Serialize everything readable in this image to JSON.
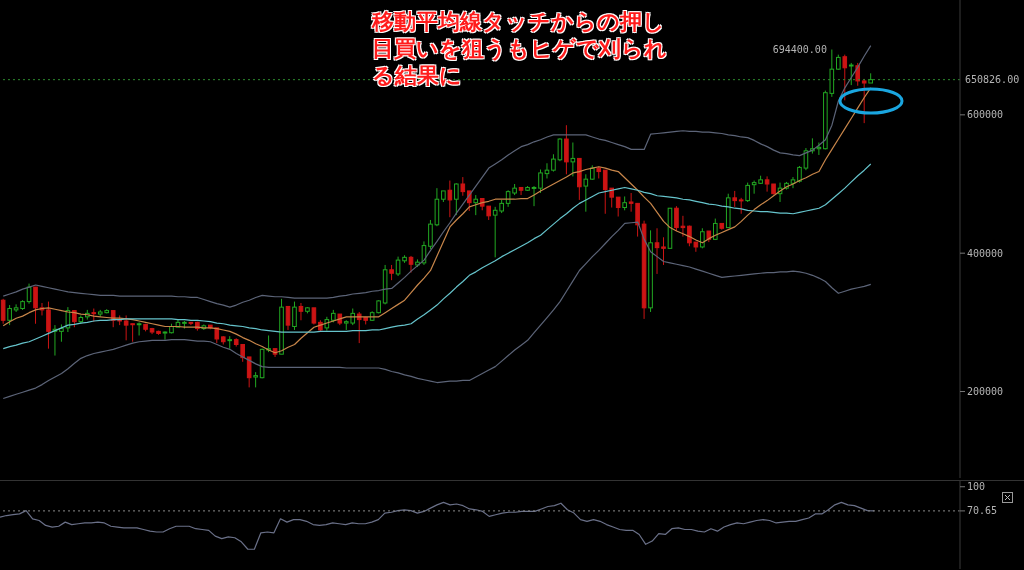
{
  "chart_data": [
    {
      "type": "candlestick",
      "title": "移動平均線タッチからの押し目買いを狙うもヒゲで刈られる結果に",
      "categories": [
        null,
        null,
        null,
        null,
        null,
        null,
        null,
        null,
        null,
        null,
        null,
        null,
        null,
        null,
        null,
        null,
        null,
        null,
        null,
        null,
        null,
        null,
        null,
        null,
        null,
        null,
        null,
        null,
        null,
        null,
        null,
        null,
        null,
        null,
        null,
        null,
        null,
        null,
        null,
        null,
        null,
        null,
        null,
        null,
        null,
        null,
        null,
        null,
        null,
        null,
        null,
        null,
        null,
        null,
        null,
        null,
        null,
        null,
        null,
        null,
        null,
        null,
        null,
        null,
        null,
        null,
        null,
        null,
        null,
        null,
        null,
        null,
        null,
        null,
        null,
        null,
        null,
        null,
        null,
        null,
        null,
        null,
        null,
        null,
        null,
        null,
        null,
        null,
        null,
        null,
        null,
        null,
        null,
        null,
        null,
        null,
        null,
        null,
        null,
        null,
        null,
        null,
        null,
        null,
        null,
        null,
        null,
        null,
        null,
        null,
        null,
        null,
        null,
        null,
        null,
        null,
        null,
        null,
        null,
        null,
        null,
        null,
        null,
        null,
        null,
        null,
        null,
        null,
        null,
        null,
        null,
        null,
        null,
        null,
        null
      ],
      "ohlc": [
        [
          332000,
          334000,
          298000,
          303000
        ],
        [
          303000,
          325000,
          296000,
          320000
        ],
        [
          318000,
          326000,
          315000,
          321000
        ],
        [
          320000,
          332000,
          318000,
          330000
        ],
        [
          330000,
          356000,
          327000,
          351000
        ],
        [
          351000,
          351000,
          298000,
          321000
        ],
        [
          321000,
          328000,
          310000,
          318000
        ],
        [
          318000,
          330000,
          262000,
          287000
        ],
        [
          287000,
          296000,
          252000,
          290000
        ],
        [
          287000,
          297000,
          272000,
          291000
        ],
        [
          292000,
          322000,
          286000,
          317000
        ],
        [
          317000,
          317000,
          293000,
          301000
        ],
        [
          301000,
          310000,
          298000,
          307000
        ],
        [
          308000,
          318000,
          304000,
          313000
        ],
        [
          314000,
          320000,
          301000,
          313000
        ],
        [
          312000,
          318000,
          308000,
          315000
        ],
        [
          314000,
          319000,
          313000,
          317000
        ],
        [
          317000,
          317000,
          293000,
          303000
        ],
        [
          304000,
          310000,
          296000,
          302000
        ],
        [
          302000,
          310000,
          274000,
          296000
        ],
        [
          298000,
          298000,
          272000,
          297000
        ],
        [
          297000,
          300000,
          281000,
          298000
        ],
        [
          297000,
          298000,
          287000,
          290000
        ],
        [
          291000,
          292000,
          283000,
          286000
        ],
        [
          287000,
          288000,
          282000,
          284000
        ],
        [
          285000,
          287000,
          275000,
          286000
        ],
        [
          285000,
          298000,
          284000,
          294000
        ],
        [
          293000,
          304000,
          293000,
          300000
        ],
        [
          299000,
          302000,
          291000,
          300000
        ],
        [
          300000,
          300000,
          296000,
          299000
        ],
        [
          300000,
          301000,
          288000,
          291000
        ],
        [
          291000,
          297000,
          289000,
          295000
        ],
        [
          296000,
          296000,
          290000,
          292000
        ],
        [
          292000,
          292000,
          270000,
          276000
        ],
        [
          279000,
          280000,
          268000,
          272000
        ],
        [
          274000,
          280000,
          262000,
          275000
        ],
        [
          275000,
          277000,
          265000,
          268000
        ],
        [
          268000,
          268000,
          243000,
          249000
        ],
        [
          250000,
          250000,
          206000,
          220000
        ],
        [
          221000,
          228000,
          206000,
          223000
        ],
        [
          220000,
          262000,
          219000,
          261000
        ],
        [
          260000,
          281000,
          257000,
          262000
        ],
        [
          262000,
          262000,
          250000,
          254000
        ],
        [
          254000,
          334000,
          254000,
          322000
        ],
        [
          323000,
          323000,
          289000,
          296000
        ],
        [
          294000,
          330000,
          289000,
          322000
        ],
        [
          323000,
          328000,
          303000,
          316000
        ],
        [
          316000,
          322000,
          313000,
          321000
        ],
        [
          321000,
          321000,
          297000,
          299000
        ],
        [
          300000,
          303000,
          286000,
          289000
        ],
        [
          292000,
          308000,
          288000,
          304000
        ],
        [
          303000,
          318000,
          300000,
          313000
        ],
        [
          312000,
          312000,
          296000,
          299000
        ],
        [
          299000,
          303000,
          289000,
          301000
        ],
        [
          299000,
          320000,
          296000,
          313000
        ],
        [
          312000,
          315000,
          270000,
          304000
        ],
        [
          307000,
          308000,
          297000,
          303000
        ],
        [
          303000,
          316000,
          302000,
          314000
        ],
        [
          314000,
          332000,
          313000,
          331000
        ],
        [
          328000,
          383000,
          326000,
          376000
        ],
        [
          376000,
          383000,
          361000,
          371000
        ],
        [
          370000,
          395000,
          367000,
          390000
        ],
        [
          389000,
          397000,
          386000,
          394000
        ],
        [
          394000,
          396000,
          372000,
          384000
        ],
        [
          383000,
          391000,
          380000,
          387000
        ],
        [
          386000,
          417000,
          383000,
          411000
        ],
        [
          410000,
          448000,
          406000,
          442000
        ],
        [
          441000,
          494000,
          439000,
          478000
        ],
        [
          478000,
          490000,
          474000,
          490000
        ],
        [
          491000,
          505000,
          452000,
          477000
        ],
        [
          478000,
          501000,
          455000,
          500000
        ],
        [
          500000,
          510000,
          483000,
          489000
        ],
        [
          490000,
          490000,
          461000,
          473000
        ],
        [
          473000,
          484000,
          455000,
          478000
        ],
        [
          479000,
          479000,
          462000,
          468000
        ],
        [
          468000,
          468000,
          448000,
          454000
        ],
        [
          455000,
          467000,
          394000,
          462000
        ],
        [
          461000,
          477000,
          458000,
          472000
        ],
        [
          472000,
          491000,
          467000,
          489000
        ],
        [
          487000,
          500000,
          484000,
          494000
        ],
        [
          495000,
          495000,
          484000,
          491000
        ],
        [
          491000,
          497000,
          490000,
          495000
        ],
        [
          494000,
          497000,
          468000,
          495000
        ],
        [
          494000,
          521000,
          487000,
          516000
        ],
        [
          515000,
          530000,
          508000,
          520000
        ],
        [
          520000,
          543000,
          518000,
          536000
        ],
        [
          535000,
          566000,
          533000,
          565000
        ],
        [
          565000,
          585000,
          514000,
          532000
        ],
        [
          532000,
          560000,
          511000,
          537000
        ],
        [
          537000,
          537000,
          477000,
          496000
        ],
        [
          497000,
          514000,
          460000,
          507000
        ],
        [
          507000,
          527000,
          506000,
          523000
        ],
        [
          523000,
          525000,
          508000,
          518000
        ],
        [
          520000,
          520000,
          457000,
          492000
        ],
        [
          494000,
          494000,
          466000,
          481000
        ],
        [
          481000,
          481000,
          453000,
          466000
        ],
        [
          466000,
          482000,
          462000,
          473000
        ],
        [
          474000,
          487000,
          460000,
          472000
        ],
        [
          472000,
          472000,
          424000,
          441000
        ],
        [
          442000,
          447000,
          305000,
          321000
        ],
        [
          321000,
          433000,
          315000,
          415000
        ],
        [
          415000,
          436000,
          370000,
          408000
        ],
        [
          409000,
          423000,
          383000,
          407000
        ],
        [
          407000,
          465000,
          407000,
          465000
        ],
        [
          465000,
          468000,
          432000,
          437000
        ],
        [
          439000,
          454000,
          424000,
          437000
        ],
        [
          439000,
          440000,
          410000,
          415000
        ],
        [
          416000,
          416000,
          402000,
          409000
        ],
        [
          409000,
          436000,
          407000,
          431000
        ],
        [
          432000,
          432000,
          416000,
          420000
        ],
        [
          420000,
          450000,
          419000,
          443000
        ],
        [
          443000,
          443000,
          434000,
          436000
        ],
        [
          437000,
          486000,
          437000,
          480000
        ],
        [
          480000,
          490000,
          467000,
          476000
        ],
        [
          477000,
          480000,
          457000,
          476000
        ],
        [
          476000,
          502000,
          474000,
          498000
        ],
        [
          499000,
          505000,
          486000,
          502000
        ],
        [
          501000,
          512000,
          500000,
          506000
        ],
        [
          506000,
          511000,
          489000,
          500000
        ],
        [
          500000,
          500000,
          485000,
          486000
        ],
        [
          486000,
          502000,
          474000,
          494000
        ],
        [
          494000,
          503000,
          492000,
          501000
        ],
        [
          501000,
          510000,
          494000,
          506000
        ],
        [
          504000,
          526000,
          502000,
          524000
        ],
        [
          523000,
          552000,
          520000,
          548000
        ],
        [
          548000,
          566000,
          544000,
          551000
        ],
        [
          551000,
          560000,
          542000,
          553000
        ],
        [
          551000,
          635000,
          550000,
          632000
        ],
        [
          631000,
          694400,
          626000,
          666000
        ],
        [
          666000,
          687000,
          665000,
          683000
        ],
        [
          684000,
          687000,
          621000,
          668000
        ],
        [
          671000,
          675000,
          643000,
          672000
        ],
        [
          671000,
          675000,
          642000,
          649000
        ],
        [
          649000,
          652000,
          588000,
          646000
        ],
        [
          646000,
          660000,
          646000,
          650826
        ]
      ],
      "series": [
        {
          "type": "line",
          "color": "#5c6478",
          "values": [
            338000,
            341000,
            344000,
            348000,
            351000,
            354000,
            352000,
            350000,
            348000,
            346000,
            344000,
            343000,
            342000,
            341000,
            340000,
            339000,
            339000,
            339000,
            338000,
            338000,
            338000,
            338000,
            338000,
            338000,
            338000,
            338000,
            338000,
            337000,
            337000,
            336000,
            336000,
            333000,
            330000,
            327000,
            325000,
            322000,
            325000,
            329000,
            332000,
            336000,
            339000,
            338000,
            337000,
            337000,
            336000,
            335000,
            335000,
            335000,
            335000,
            335000,
            335000,
            336000,
            338000,
            339000,
            341000,
            342000,
            343000,
            345000,
            346000,
            348000,
            349000,
            357000,
            365000,
            374000,
            382000,
            390000,
            404000,
            417000,
            431000,
            444000,
            458000,
            471000,
            484000,
            497000,
            510000,
            523000,
            529000,
            535000,
            542000,
            548000,
            554000,
            557000,
            561000,
            564000,
            568000,
            571000,
            571000,
            571000,
            571000,
            571000,
            571000,
            568000,
            565000,
            563000,
            560000,
            557000,
            554000,
            550000,
            550000,
            550000,
            572000,
            573000,
            574000,
            575000,
            576000,
            577000,
            576000,
            576000,
            575000,
            575000,
            574000,
            573000,
            571000,
            570000,
            568000,
            567000,
            563000,
            558000,
            554000,
            549000,
            545000,
            544000,
            542000,
            541000,
            545000,
            549000,
            556000,
            564000,
            585000,
            620000,
            639000,
            654000,
            669000,
            685000,
            700000
          ]
        },
        {
          "type": "line",
          "color": "#c8864a",
          "values": [
            295000,
            301000,
            306000,
            309000,
            314000,
            318000,
            320000,
            321000,
            319000,
            317000,
            315000,
            314000,
            312000,
            311000,
            309000,
            308000,
            307000,
            306000,
            306000,
            305000,
            304000,
            302000,
            300000,
            298000,
            296000,
            294000,
            294000,
            294000,
            293000,
            293000,
            293000,
            292000,
            292000,
            291000,
            289000,
            287000,
            283000,
            278000,
            274000,
            269000,
            265000,
            260000,
            256000,
            259000,
            264000,
            268000,
            277000,
            285000,
            293000,
            296000,
            299000,
            302000,
            305000,
            308000,
            308000,
            308000,
            308000,
            308000,
            308000,
            314000,
            320000,
            326000,
            332000,
            343000,
            354000,
            364000,
            375000,
            396000,
            417000,
            438000,
            448000,
            457000,
            467000,
            470000,
            473000,
            475000,
            478000,
            478000,
            478000,
            478000,
            479000,
            479000,
            484000,
            490000,
            495000,
            500000,
            505000,
            510000,
            516000,
            518000,
            521000,
            523000,
            525000,
            523000,
            520000,
            518000,
            509000,
            500000,
            491000,
            481000,
            472000,
            459000,
            446000,
            437000,
            432000,
            428000,
            424000,
            419000,
            415000,
            421000,
            426000,
            430000,
            434000,
            438000,
            446000,
            455000,
            463000,
            470000,
            476000,
            483000,
            490000,
            496000,
            500000,
            505000,
            509000,
            514000,
            518000,
            535000,
            550000,
            565000,
            580000,
            595000,
            610000,
            625000,
            639000
          ]
        },
        {
          "type": "line",
          "color": "#66c4cc",
          "values": [
            262000,
            265000,
            267000,
            270000,
            272000,
            276000,
            280000,
            284000,
            288000,
            292000,
            296000,
            297000,
            299000,
            300000,
            302000,
            303000,
            303000,
            304000,
            304000,
            305000,
            305000,
            305000,
            305000,
            305000,
            305000,
            305000,
            305000,
            304000,
            304000,
            303000,
            303000,
            302000,
            301000,
            299000,
            298000,
            296000,
            295000,
            294000,
            292000,
            291000,
            289000,
            288000,
            287000,
            286000,
            286000,
            286000,
            286000,
            286000,
            286000,
            287000,
            287000,
            287000,
            287000,
            287000,
            288000,
            288000,
            288000,
            289000,
            289000,
            291000,
            293000,
            295000,
            296000,
            298000,
            305000,
            311000,
            318000,
            325000,
            334000,
            342000,
            351000,
            359000,
            368000,
            373000,
            379000,
            384000,
            389000,
            395000,
            400000,
            405000,
            410000,
            415000,
            421000,
            426000,
            434000,
            442000,
            450000,
            457000,
            465000,
            472000,
            477000,
            482000,
            487000,
            489000,
            491000,
            493000,
            495000,
            493000,
            491000,
            488000,
            486000,
            483000,
            482000,
            481000,
            480000,
            478000,
            477000,
            475000,
            473000,
            471000,
            470000,
            468000,
            467000,
            465000,
            464000,
            462000,
            461000,
            460000,
            460000,
            459000,
            458000,
            458000,
            457000,
            459000,
            461000,
            463000,
            465000,
            470000,
            478000,
            486000,
            494000,
            503000,
            512000,
            520000,
            529000
          ]
        },
        {
          "type": "line",
          "color": "#5c6478",
          "values": [
            190000,
            193000,
            196000,
            199000,
            202000,
            205000,
            210000,
            216000,
            221000,
            226000,
            233000,
            241000,
            248000,
            252000,
            255000,
            257000,
            259000,
            261000,
            264000,
            267000,
            270000,
            272000,
            273000,
            274000,
            274000,
            274000,
            275000,
            275000,
            275000,
            274000,
            273000,
            273000,
            272000,
            268000,
            264000,
            261000,
            255000,
            250000,
            245000,
            240000,
            236000,
            235000,
            235000,
            235000,
            235000,
            235000,
            235000,
            235000,
            235000,
            235000,
            235000,
            235000,
            235000,
            234000,
            234000,
            234000,
            234000,
            234000,
            234000,
            232000,
            229000,
            227000,
            224000,
            222000,
            219000,
            217000,
            215000,
            213000,
            214000,
            215000,
            215000,
            216000,
            216000,
            221000,
            226000,
            231000,
            236000,
            244000,
            252000,
            260000,
            267000,
            274000,
            285000,
            296000,
            307000,
            318000,
            330000,
            345000,
            360000,
            375000,
            385000,
            395000,
            404000,
            414000,
            424000,
            433000,
            443000,
            444000,
            445000,
            420000,
            402000,
            395000,
            388000,
            386000,
            384000,
            382000,
            380000,
            377000,
            374000,
            371000,
            368000,
            365000,
            366000,
            367000,
            368000,
            369000,
            370000,
            371000,
            372000,
            372000,
            373000,
            373000,
            374000,
            373000,
            371000,
            368000,
            364000,
            359000,
            350000,
            342000,
            345000,
            348000,
            350000,
            352000,
            355000
          ]
        }
      ],
      "ylim": [
        75000,
        766000
      ],
      "yticks": [
        200000,
        400000,
        600000
      ],
      "ref_lines": [
        {
          "axis": "y",
          "value": 650826,
          "label": "650826.00",
          "color": "#2e8b2e",
          "line_style": "dotted"
        }
      ],
      "annotations": [
        "694400.00"
      ]
    },
    {
      "type": "line",
      "categories": [
        null,
        null,
        null,
        null,
        null,
        null,
        null,
        null,
        null,
        null,
        null,
        null,
        null,
        null,
        null,
        null,
        null,
        null,
        null,
        null,
        null,
        null,
        null,
        null,
        null,
        null,
        null,
        null,
        null,
        null,
        null,
        null,
        null,
        null,
        null,
        null,
        null,
        null,
        null,
        null,
        null,
        null,
        null,
        null,
        null,
        null,
        null,
        null,
        null,
        null,
        null,
        null,
        null,
        null,
        null,
        null,
        null,
        null,
        null,
        null,
        null,
        null,
        null,
        null,
        null,
        null,
        null,
        null,
        null,
        null,
        null,
        null,
        null,
        null,
        null,
        null,
        null,
        null,
        null,
        null,
        null,
        null,
        null,
        null,
        null,
        null,
        null,
        null,
        null,
        null,
        null,
        null,
        null,
        null,
        null,
        null,
        null,
        null,
        null,
        null,
        null,
        null,
        null,
        null,
        null,
        null,
        null,
        null,
        null,
        null,
        null,
        null,
        null,
        null,
        null,
        null,
        null,
        null,
        null,
        null,
        null,
        null,
        null,
        null,
        null,
        null,
        null,
        null,
        null,
        null,
        null,
        null,
        null,
        null,
        null
      ],
      "series": [
        {
          "color": "#6a7088",
          "values": [
            63,
            65,
            66,
            67,
            71,
            61,
            59,
            53,
            51,
            52,
            57,
            54,
            55,
            56,
            56,
            57,
            56,
            52,
            51,
            50,
            50,
            50,
            48,
            46,
            45,
            45,
            49,
            52,
            52,
            52,
            49,
            48,
            47,
            40,
            37,
            39,
            38,
            33,
            24,
            24,
            44,
            45,
            44,
            61,
            57,
            60,
            60,
            58,
            54,
            53,
            54,
            56,
            55,
            54,
            56,
            55,
            55,
            57,
            60,
            68,
            69,
            71,
            72,
            71,
            68,
            70,
            74,
            78,
            81,
            78,
            79,
            77,
            73,
            72,
            70,
            64,
            66,
            68,
            69,
            69,
            70,
            70,
            70,
            73,
            76,
            77,
            80,
            72,
            68,
            60,
            58,
            60,
            58,
            54,
            51,
            48,
            47,
            47,
            42,
            30,
            34,
            43,
            42,
            49,
            50,
            48,
            48,
            46,
            45,
            49,
            46,
            51,
            54,
            56,
            55,
            57,
            59,
            60,
            59,
            56,
            57,
            58,
            58,
            60,
            62,
            67,
            67,
            72,
            78,
            81,
            78,
            77,
            74,
            71,
            70.65
          ]
        }
      ],
      "ylim": [
        0,
        107
      ],
      "yticks": [
        100,
        {
          "value": 70.65,
          "label": "70.65"
        }
      ],
      "ref_lines": [
        {
          "axis": "y",
          "value": 70.65,
          "color": "#8a8a8a",
          "line_style": "dotted"
        }
      ]
    }
  ]
}
